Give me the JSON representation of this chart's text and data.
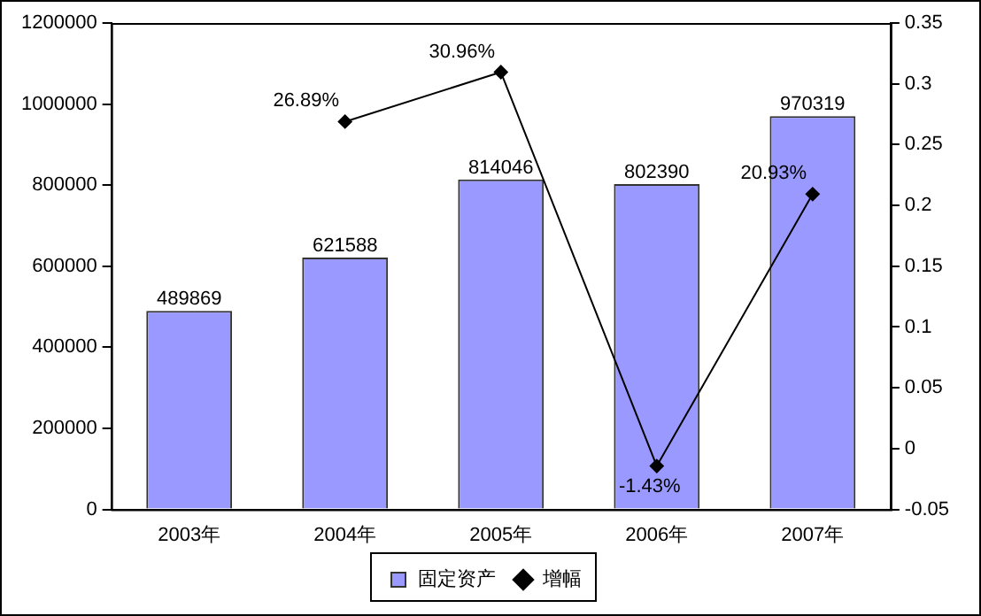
{
  "chart_data": {
    "type": "bar",
    "categories": [
      "2003年",
      "2004年",
      "2005年",
      "2006年",
      "2007年"
    ],
    "series": [
      {
        "name": "固定资产",
        "color": "#9999ff",
        "values": [
          489869,
          621588,
          814046,
          802390,
          970319
        ]
      },
      {
        "name": "增幅",
        "type": "line",
        "axis": "y2",
        "color": "#000000",
        "marker": "diamond",
        "line_style": "solid",
        "values": [
          null,
          0.2689,
          0.3096,
          -0.0143,
          0.2093
        ],
        "value_labels": [
          null,
          "26.89%",
          "30.96%",
          "-1.43%",
          "20.93%"
        ]
      }
    ],
    "ylim": [
      0,
      1200000
    ],
    "yticks": [
      0,
      200000,
      400000,
      600000,
      800000,
      1000000,
      1200000
    ],
    "y2lim": [
      -0.05,
      0.35
    ],
    "y2ticks": [
      -0.05,
      0,
      0.05,
      0.1,
      0.15,
      0.2,
      0.25,
      0.3,
      0.35
    ],
    "grid": false,
    "legend": "bottom",
    "data_labels": true
  }
}
